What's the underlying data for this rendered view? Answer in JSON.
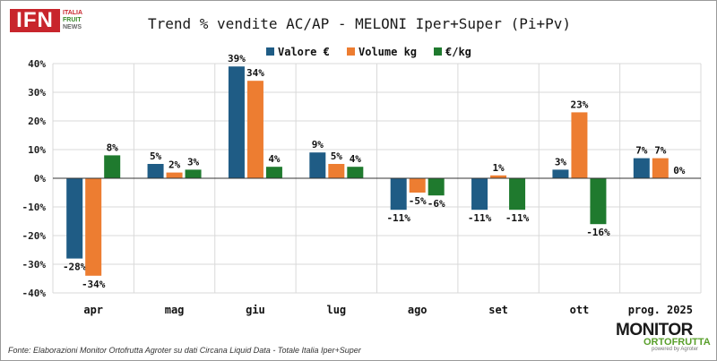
{
  "logo_top": {
    "main": "IFN",
    "line1": "ITALIA",
    "line2": "FRUIT",
    "line3": "NEWS"
  },
  "logo_bottom": {
    "main": "MONITOR",
    "sub": "ORTOFRUTTA",
    "by": "powered by Agroter"
  },
  "source_note": "Fonte: Elaborazioni Monitor Ortofrutta Agroter su dati Circana Liquid Data - Totale Italia Iper+Super",
  "colors": {
    "valore": "#1f5c85",
    "volume": "#ed7d31",
    "prezzo": "#1f7a2e"
  },
  "chart_data": {
    "type": "bar",
    "title": "Trend % vendite AC/AP - MELONI Iper+Super (Pi+Pv)",
    "xlabel": "",
    "ylabel": "",
    "categories": [
      "apr",
      "mag",
      "giu",
      "lug",
      "ago",
      "set",
      "ott",
      "prog. 2025"
    ],
    "series": [
      {
        "name": "Valore €",
        "values": [
          -28,
          5,
          39,
          9,
          -11,
          -11,
          3,
          7
        ]
      },
      {
        "name": "Volume kg",
        "values": [
          -34,
          2,
          34,
          5,
          -5,
          1,
          23,
          7
        ]
      },
      {
        "name": "€/kg",
        "values": [
          8,
          3,
          4,
          4,
          -6,
          -11,
          -16,
          0
        ]
      }
    ],
    "ylim": [
      -40,
      40
    ],
    "yticks": [
      40,
      30,
      20,
      10,
      0,
      -10,
      -20,
      -30,
      -40
    ],
    "ytick_labels": [
      "40%",
      "30%",
      "20%",
      "10%",
      "0%",
      "-10%",
      "-20%",
      "-30%",
      "-40%"
    ],
    "value_suffix": "%",
    "grid": true,
    "legend": "top-center"
  }
}
